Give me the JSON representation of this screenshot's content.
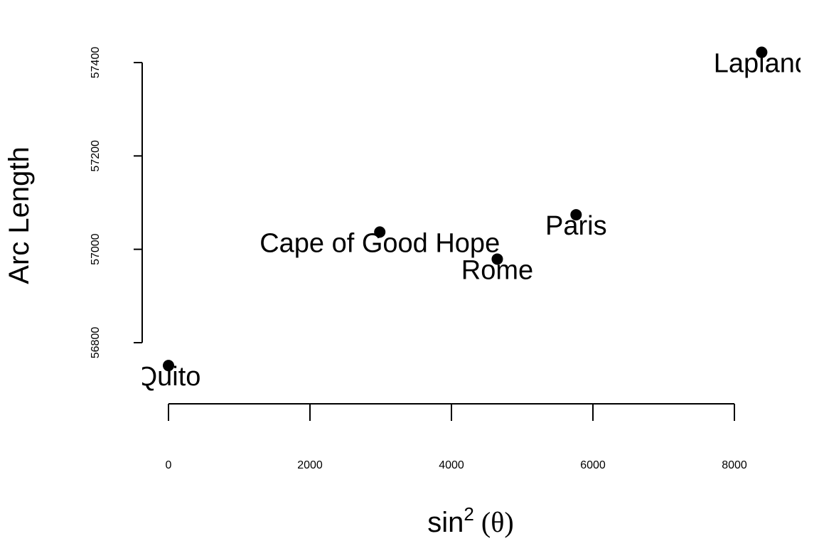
{
  "chart_data": {
    "type": "scatter",
    "xlabel": "sin",
    "xlabel_superscript": "2",
    "xlabel_suffix": "(θ)",
    "ylabel": "Arc Length",
    "xlim": [
      0,
      8000
    ],
    "ylim": [
      56800,
      57400
    ],
    "x_ticks": [
      "0",
      "2000",
      "4000",
      "6000",
      "8000"
    ],
    "y_ticks": [
      "56800",
      "57000",
      "57200",
      "57400"
    ],
    "grid": false,
    "points": [
      {
        "label": "Quito",
        "x": 0,
        "y": 56751
      },
      {
        "label": "Cape of Good Hope",
        "x": 2987,
        "y": 57037
      },
      {
        "label": "Rome",
        "x": 4648,
        "y": 56979
      },
      {
        "label": "Paris",
        "x": 5762,
        "y": 57074
      },
      {
        "label": "Lapland",
        "x": 8386,
        "y": 57422
      }
    ]
  }
}
